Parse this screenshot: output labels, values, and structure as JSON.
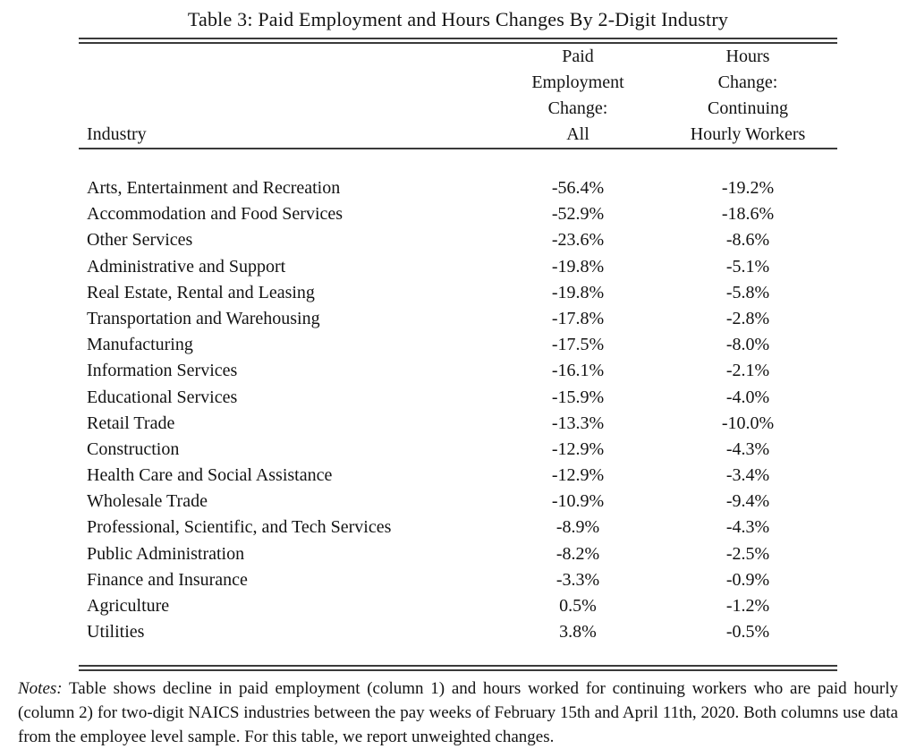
{
  "title": "Table 3: Paid Employment and Hours Changes By 2-Digit Industry",
  "table": {
    "industry_header": "Industry",
    "col2_header": [
      "Paid",
      "Employment",
      "Change:",
      "All"
    ],
    "col3_header": [
      "Hours",
      "Change:",
      "Continuing",
      "Hourly Workers"
    ],
    "rows": [
      {
        "industry": "Arts, Entertainment and Recreation",
        "employment_change": "-56.4%",
        "hours_change": "-19.2%"
      },
      {
        "industry": "Accommodation and Food Services",
        "employment_change": "-52.9%",
        "hours_change": "-18.6%"
      },
      {
        "industry": "Other Services",
        "employment_change": "-23.6%",
        "hours_change": "-8.6%"
      },
      {
        "industry": "Administrative and Support",
        "employment_change": "-19.8%",
        "hours_change": "-5.1%"
      },
      {
        "industry": "Real Estate, Rental and Leasing",
        "employment_change": "-19.8%",
        "hours_change": "-5.8%"
      },
      {
        "industry": "Transportation and Warehousing",
        "employment_change": "-17.8%",
        "hours_change": "-2.8%"
      },
      {
        "industry": "Manufacturing",
        "employment_change": "-17.5%",
        "hours_change": "-8.0%"
      },
      {
        "industry": "Information Services",
        "employment_change": "-16.1%",
        "hours_change": "-2.1%"
      },
      {
        "industry": "Educational Services",
        "employment_change": "-15.9%",
        "hours_change": "-4.0%"
      },
      {
        "industry": "Retail Trade",
        "employment_change": "-13.3%",
        "hours_change": "-10.0%"
      },
      {
        "industry": "Construction",
        "employment_change": "-12.9%",
        "hours_change": "-4.3%"
      },
      {
        "industry": "Health Care and Social Assistance",
        "employment_change": "-12.9%",
        "hours_change": "-3.4%"
      },
      {
        "industry": "Wholesale Trade",
        "employment_change": "-10.9%",
        "hours_change": "-9.4%"
      },
      {
        "industry": "Professional, Scientific, and Tech Services",
        "employment_change": "-8.9%",
        "hours_change": "-4.3%"
      },
      {
        "industry": "Public Administration",
        "employment_change": "-8.2%",
        "hours_change": "-2.5%"
      },
      {
        "industry": "Finance and Insurance",
        "employment_change": "-3.3%",
        "hours_change": "-0.9%"
      },
      {
        "industry": "Agriculture",
        "employment_change": "0.5%",
        "hours_change": "-1.2%"
      },
      {
        "industry": "Utilities",
        "employment_change": "3.8%",
        "hours_change": "-0.5%"
      }
    ]
  },
  "notes": {
    "label": "Notes:",
    "text": " Table shows decline in paid employment (column 1) and hours worked for continuing workers who are paid hourly (column 2) for two-digit NAICS industries between the pay weeks of February 15th and April 11th, 2020. Both columns use data from the employee level sample. For this table, we report unweighted changes."
  },
  "colors": {
    "background": "#ffffff",
    "text": "#131313",
    "rule": "#3a3a3a"
  }
}
